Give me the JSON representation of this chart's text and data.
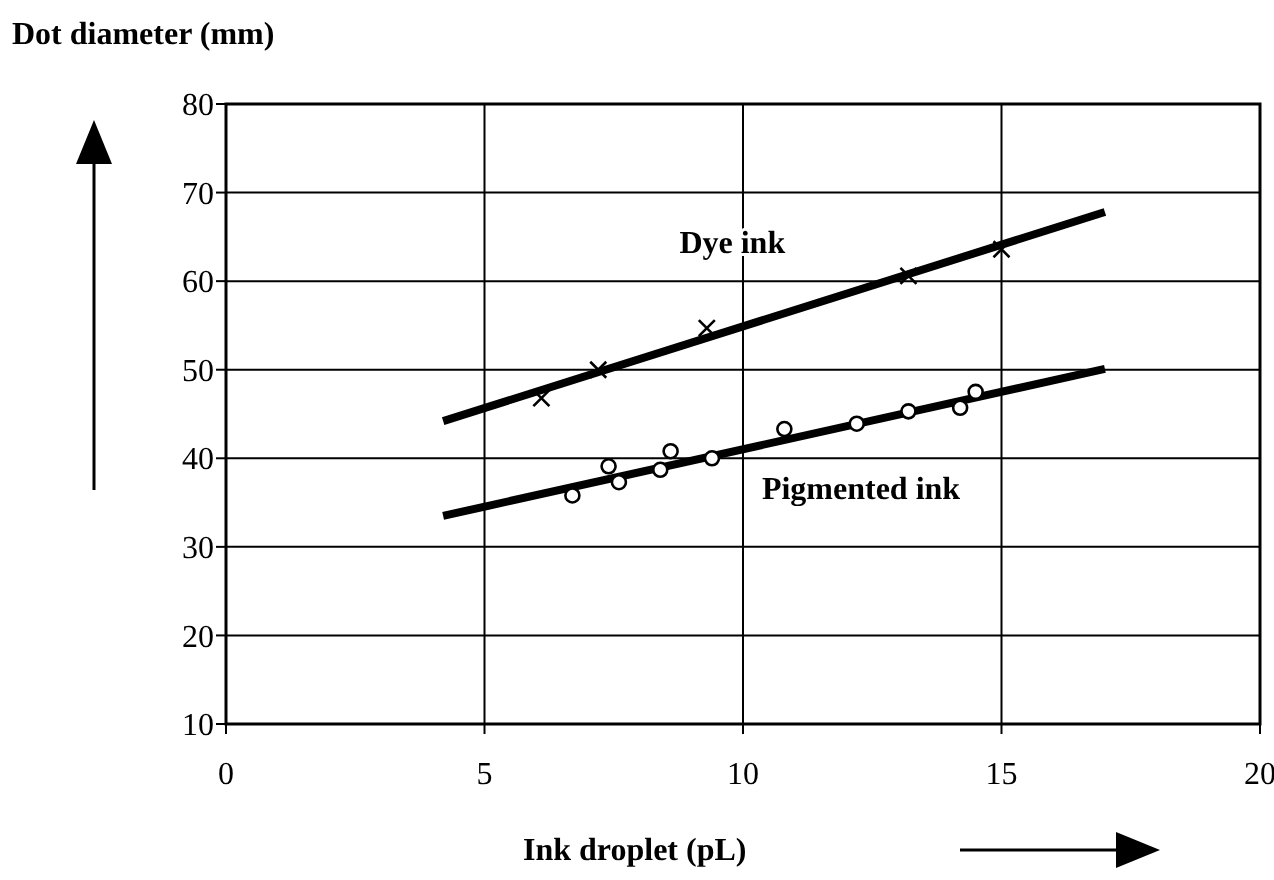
{
  "chart_data": {
    "type": "scatter",
    "xlabel": "Ink droplet (pL)",
    "ylabel": "Dot diameter (mm)",
    "xlim": [
      0,
      20
    ],
    "ylim": [
      10,
      80
    ],
    "xticks": [
      0,
      5,
      10,
      15,
      20
    ],
    "yticks": [
      10,
      20,
      30,
      40,
      50,
      60,
      70,
      80
    ],
    "grid": true,
    "legend": false,
    "line_style": "solid",
    "series": [
      {
        "name": "Dye ink",
        "marker": "cross",
        "color": "#000000",
        "x": [
          6.1,
          7.2,
          9.3,
          13.2,
          15.0
        ],
        "values": [
          46.8,
          50.0,
          54.7,
          60.6,
          63.6
        ]
      },
      {
        "type": "line",
        "marker": "none",
        "color": "#000000",
        "x": [
          4.2,
          17.0
        ],
        "values": [
          44.2,
          67.8
        ]
      },
      {
        "name": "Pigmented ink",
        "marker": "circle",
        "color": "#000000",
        "x": [
          6.7,
          7.4,
          7.6,
          8.4,
          8.6,
          9.4,
          10.8,
          12.2,
          13.2,
          14.2,
          14.5
        ],
        "values": [
          35.8,
          39.1,
          37.3,
          38.7,
          40.8,
          40.0,
          43.3,
          43.9,
          45.3,
          45.7,
          47.5
        ]
      },
      {
        "type": "line",
        "marker": "none",
        "color": "#000000",
        "x": [
          4.2,
          17.0
        ],
        "values": [
          33.5,
          50.1
        ]
      }
    ]
  }
}
